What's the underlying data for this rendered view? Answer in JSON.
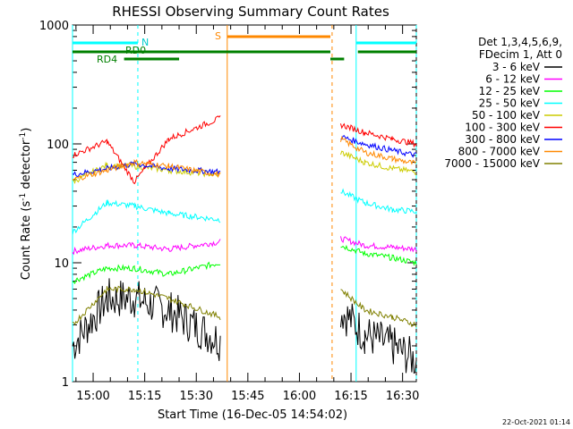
{
  "chart_data": {
    "type": "line",
    "title": "RHESSI Observing Summary Count Rates",
    "xlabel": "Start Time (16-Dec-05 14:54:02)",
    "ylabel_main": "Count Rate (s",
    "ylabel_sup1": "-1",
    "ylabel_mid": " detector",
    "ylabel_sup2": "-1",
    "ylabel_end": ")",
    "yscale": "log",
    "ylim": [
      1,
      1000
    ],
    "xlim_minutes": [
      0,
      100
    ],
    "x_ticks": [
      {
        "t": 6,
        "label": "15:00"
      },
      {
        "t": 21,
        "label": "15:15"
      },
      {
        "t": 36,
        "label": "15:30"
      },
      {
        "t": 51,
        "label": "15:45"
      },
      {
        "t": 66,
        "label": "16:00"
      },
      {
        "t": 81,
        "label": "16:15"
      },
      {
        "t": 96,
        "label": "16:30"
      }
    ],
    "y_ticks": [
      {
        "v": 1000,
        "label": "1000"
      },
      {
        "v": 100,
        "label": "100"
      },
      {
        "v": 10,
        "label": "10"
      },
      {
        "v": 1,
        "label": "1"
      }
    ],
    "legend_header": [
      "Det 1,3,4,5,6,9,",
      "FDecim 1, Att 0"
    ],
    "series": [
      {
        "name": "3 - 6 keV",
        "color": "#000000",
        "values": [
          2,
          5,
          5,
          4,
          2.2,
          null,
          null,
          4,
          2.5,
          2,
          1.5
        ]
      },
      {
        "name": "6 - 12 keV",
        "color": "#ff00ff",
        "values": [
          12.5,
          14,
          14,
          13,
          15,
          null,
          null,
          16,
          14,
          13.5,
          13
        ]
      },
      {
        "name": "12 - 25 keV",
        "color": "#00ff00",
        "values": [
          7,
          9,
          9,
          8,
          10,
          null,
          null,
          14,
          12,
          11,
          10
        ]
      },
      {
        "name": "25 - 50 keV",
        "color": "#00ffff",
        "values": [
          18,
          32,
          30,
          26,
          23,
          null,
          null,
          40,
          32,
          28,
          27
        ]
      },
      {
        "name": "50 - 100 keV",
        "color": "#cccc00",
        "values": [
          48,
          66,
          65,
          60,
          55,
          null,
          null,
          85,
          70,
          62,
          58
        ]
      },
      {
        "name": "100 - 300 keV",
        "color": "#ff0000",
        "values": [
          80,
          105,
          48,
          110,
          165,
          null,
          null,
          145,
          125,
          110,
          100
        ]
      },
      {
        "name": "300 - 800 keV",
        "color": "#0000ff",
        "values": [
          55,
          62,
          68,
          62,
          58,
          null,
          null,
          115,
          100,
          88,
          80
        ]
      },
      {
        "name": "800 - 7000 keV",
        "color": "#ff8800",
        "values": [
          50,
          60,
          70,
          65,
          55,
          null,
          null,
          110,
          85,
          75,
          68
        ]
      },
      {
        "name": "7000 - 15000 keV",
        "color": "#808000",
        "values": [
          3,
          6,
          6,
          5,
          3.5,
          null,
          null,
          6,
          4,
          3.5,
          3
        ]
      }
    ],
    "series_times": [
      0,
      10,
      18,
      28,
      43,
      48,
      76,
      78,
      85,
      93,
      100
    ],
    "flags": [
      {
        "label": "N",
        "color": "#00ffff"
      },
      {
        "label": "S",
        "color": "#ff8800"
      },
      {
        "label": "RD0",
        "color": "#008000"
      },
      {
        "label": "RD4",
        "color": "#008000"
      }
    ]
  },
  "footer_timestamp": "22-Oct-2021 01:14"
}
